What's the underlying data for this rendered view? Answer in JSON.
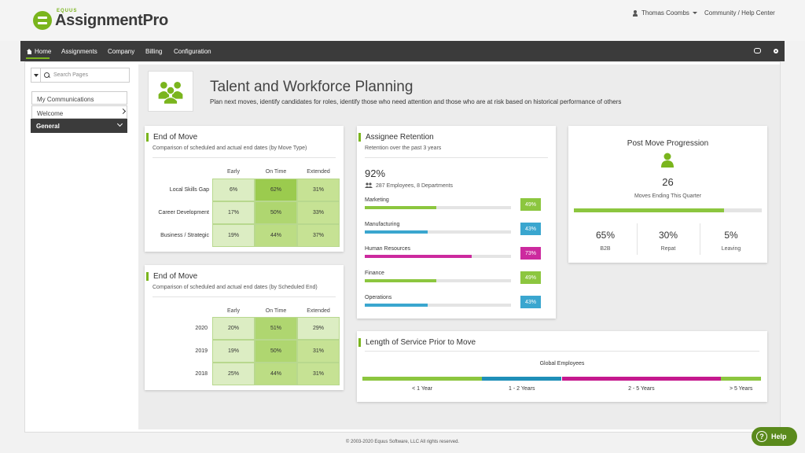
{
  "brand": {
    "small": "EQUUS",
    "name": "AssignmentPro",
    "accent": "#7ab51d"
  },
  "header": {
    "user": "Thomas Coombs",
    "community": "Community / Help Center"
  },
  "nav": {
    "home": "Home",
    "assignments": "Assignments",
    "company": "Company",
    "billing": "Billing",
    "configuration": "Configuration"
  },
  "sidebar": {
    "search_placeholder": "Search Pages",
    "my_communications": "My Communications",
    "welcome": "Welcome",
    "general": "General"
  },
  "page": {
    "title": "Talent and Workforce Planning",
    "subtitle": "Plan next moves, identify candidates for roles, identify those who need attention and those who are at risk based on historical performance of others"
  },
  "end_move_type": {
    "title": "End of Move",
    "subtitle": "Comparison of scheduled and actual end dates (by Move Type)",
    "columns": [
      "Early",
      "On Time",
      "Extended"
    ],
    "rows": [
      {
        "label": "Local Skills Gap",
        "values": [
          "6%",
          "62%",
          "31%"
        ]
      },
      {
        "label": "Career Development",
        "values": [
          "17%",
          "50%",
          "33%"
        ]
      },
      {
        "label": "Business / Strategic",
        "values": [
          "19%",
          "44%",
          "37%"
        ]
      }
    ]
  },
  "end_move_scheduled": {
    "title": "End of Move",
    "subtitle": "Comparison of scheduled and actual end dates (by Scheduled End)",
    "columns": [
      "Early",
      "On Time",
      "Extended"
    ],
    "rows": [
      {
        "label": "2020",
        "values": [
          "20%",
          "51%",
          "29%"
        ]
      },
      {
        "label": "2019",
        "values": [
          "19%",
          "50%",
          "31%"
        ]
      },
      {
        "label": "2018",
        "values": [
          "25%",
          "44%",
          "31%"
        ]
      }
    ]
  },
  "retention": {
    "title": "Assignee Retention",
    "subtitle": "Retention over the past 3 years",
    "overall": "92%",
    "meta": "287 Employees, 8 Departments",
    "items": [
      {
        "name": "Marketing",
        "value": 49,
        "label": "49%",
        "color": "#8cc63f"
      },
      {
        "name": "Manufacturing",
        "value": 43,
        "label": "43%",
        "color": "#3aa6cf"
      },
      {
        "name": "Human Resources",
        "value": 73,
        "label": "73%",
        "color": "#cc2a9e"
      },
      {
        "name": "Finance",
        "value": 49,
        "label": "49%",
        "color": "#8cc63f"
      },
      {
        "name": "Operations",
        "value": 43,
        "label": "43%",
        "color": "#3aa6cf"
      }
    ]
  },
  "progression": {
    "title": "Post Move Progression",
    "count": "26",
    "count_label": "Moves Ending This Quarter",
    "progress": 0.8,
    "stats": [
      {
        "value": "65%",
        "label": "B2B"
      },
      {
        "value": "30%",
        "label": "Repat"
      },
      {
        "value": "5%",
        "label": "Leaving"
      }
    ]
  },
  "service": {
    "title": "Length of Service Prior to Move",
    "group": "Global Employees",
    "segments": [
      {
        "label": "< 1 Year",
        "share": 0.3,
        "color": "#8cc63f"
      },
      {
        "label": "1 - 2 Years",
        "share": 0.2,
        "color": "#1f8fb8"
      },
      {
        "label": "2 - 5 Years",
        "share": 0.4,
        "color": "#c5188e"
      },
      {
        "label": "> 5 Years",
        "share": 0.1,
        "color": "#8cc63f"
      }
    ]
  },
  "footer": "© 2003-2020 Equus Software, LLC All rights reserved.",
  "help": "Help"
}
